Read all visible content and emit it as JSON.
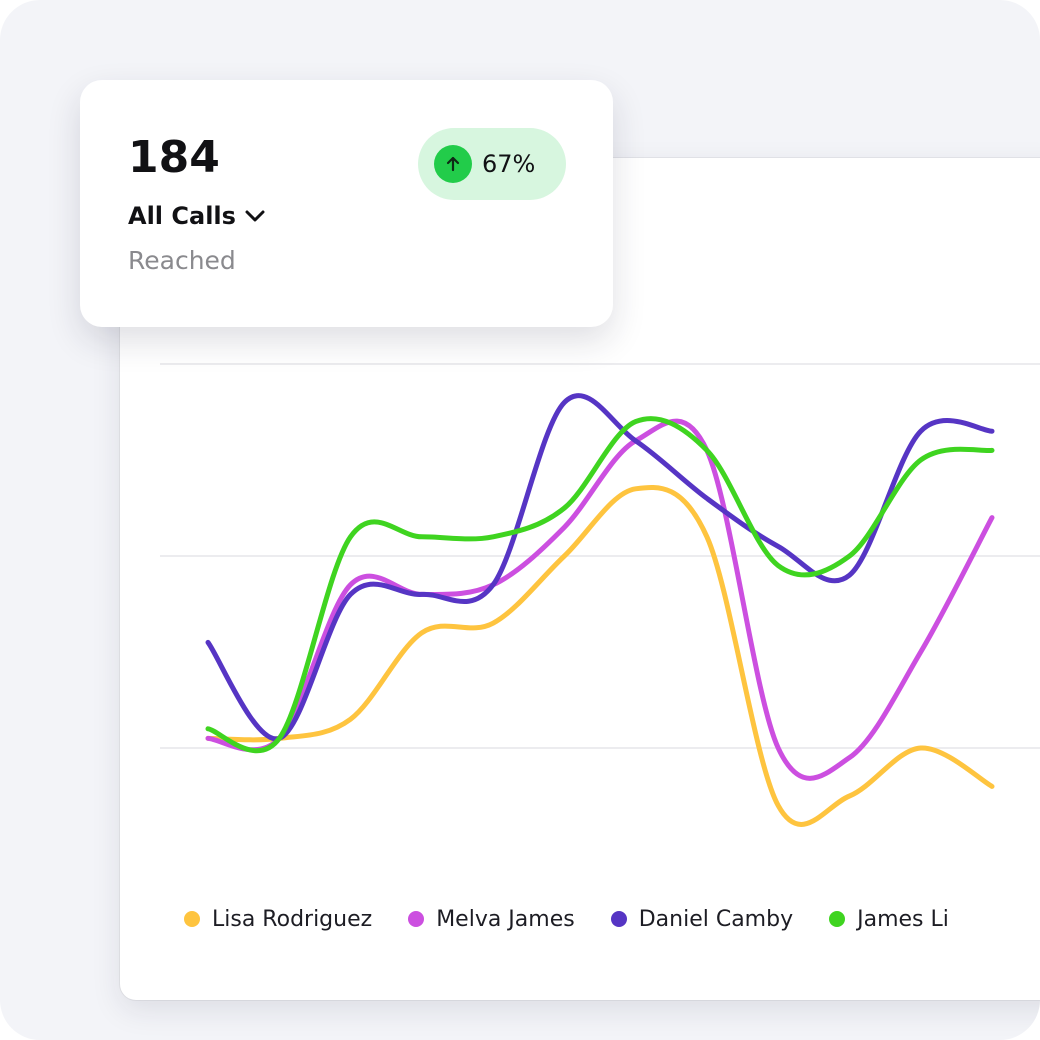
{
  "stat": {
    "value": "184",
    "title": "All Calls",
    "subtitle": "Reached",
    "change": "67%"
  },
  "colors": {
    "lisa": "#fec43f",
    "melva": "#cc4fe0",
    "daniel": "#5635c4",
    "james": "#3fd420",
    "badge_bg": "#d7f6df",
    "badge_icon": "#22cc4a"
  },
  "icons": {
    "change": "arrow-up-circle-icon",
    "dropdown": "chevron-down-icon"
  },
  "chart_data": {
    "type": "line",
    "title": "",
    "xlabel": "",
    "ylabel": "",
    "grid": true,
    "legend_position": "bottom",
    "x": [
      1,
      2,
      3,
      4,
      5,
      6,
      7,
      8,
      9,
      10,
      11,
      12
    ],
    "xlim": [
      1,
      12
    ],
    "ylim": [
      0,
      4
    ],
    "series": [
      {
        "name": "Lisa Rodriguez",
        "color": "#fec43f",
        "values": [
          1.05,
          1.05,
          1.15,
          1.6,
          1.65,
          2.0,
          2.35,
          2.1,
          0.7,
          0.75,
          1.0,
          0.8
        ]
      },
      {
        "name": "Melva James",
        "color": "#cc4fe0",
        "values": [
          1.05,
          1.05,
          1.85,
          1.8,
          1.85,
          2.15,
          2.6,
          2.55,
          1.0,
          0.95,
          1.5,
          2.2
        ]
      },
      {
        "name": "Daniel Camby",
        "color": "#5635c4",
        "values": [
          1.55,
          1.05,
          1.8,
          1.8,
          1.85,
          2.8,
          2.6,
          2.3,
          2.05,
          1.9,
          2.65,
          2.65
        ]
      },
      {
        "name": "James Li",
        "color": "#3fd420",
        "values": [
          1.1,
          1.05,
          2.1,
          2.1,
          2.1,
          2.25,
          2.7,
          2.55,
          1.95,
          2.0,
          2.5,
          2.55
        ]
      }
    ]
  }
}
